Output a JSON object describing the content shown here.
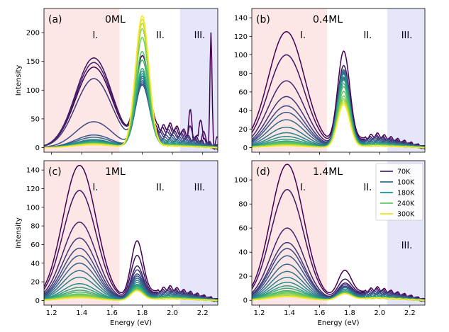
{
  "chart_data": [
    {
      "type": "line",
      "panel_label": "(a)",
      "title": "0ML",
      "region_labels": [
        "I.",
        "II.",
        "III."
      ],
      "ylabel": "Intensity",
      "xlabel": "",
      "xlim": [
        1.15,
        2.3
      ],
      "ylim": [
        -8,
        242
      ],
      "yticks": [
        0,
        50,
        100,
        150,
        200
      ],
      "xticks": [
        1.2,
        1.4,
        1.6,
        1.8,
        2.0,
        2.2
      ],
      "regions": [
        {
          "label": "I.",
          "from": 1.15,
          "to": 1.65,
          "color": "#fde6e6"
        },
        {
          "label": "III.",
          "from": 2.05,
          "to": 2.3,
          "color": "#e6e6fb"
        }
      ],
      "model": {
        "p1": {
          "center": 1.48,
          "width": 0.12,
          "amps": [
            140,
            156,
            148,
            120,
            45,
            22,
            18,
            14,
            13,
            12,
            10,
            9,
            8,
            8,
            7,
            7,
            6,
            6,
            5
          ]
        },
        "p2": {
          "center": 1.8,
          "width": 0.045,
          "amps": [
            140,
            105,
            100,
            95,
            100,
            105,
            110,
            115,
            120,
            125,
            130,
            135,
            150,
            165,
            190,
            205,
            215,
            222,
            228
          ]
        },
        "tail": {
          "amps": [
            38,
            34,
            28,
            25,
            20,
            17,
            14,
            12,
            10,
            8,
            7,
            6,
            5,
            5,
            4,
            4,
            3,
            3,
            3
          ]
        },
        "spikes": true
      }
    },
    {
      "type": "line",
      "panel_label": "(b)",
      "title": "0.4ML",
      "region_labels": [
        "I.",
        "II.",
        "III."
      ],
      "ylabel": "",
      "xlabel": "",
      "xlim": [
        1.15,
        2.3
      ],
      "ylim": [
        -5,
        150
      ],
      "yticks": [
        0,
        20,
        40,
        60,
        80,
        100,
        120,
        140
      ],
      "xticks": [
        1.2,
        1.4,
        1.6,
        1.8,
        2.0,
        2.2
      ],
      "regions": [
        {
          "label": "I.",
          "from": 1.15,
          "to": 1.65,
          "color": "#fde6e6"
        },
        {
          "label": "III.",
          "from": 2.05,
          "to": 2.3,
          "color": "#e6e6fb"
        }
      ],
      "model": {
        "p1": {
          "center": 1.38,
          "width": 0.12,
          "amps": [
            125,
            100,
            72,
            55,
            45,
            38,
            30,
            22,
            16,
            12,
            9,
            7,
            6,
            5,
            4,
            3,
            3,
            2,
            2
          ]
        },
        "p2": {
          "center": 1.76,
          "width": 0.04,
          "amps": [
            100,
            85,
            70,
            72,
            78,
            80,
            82,
            80,
            78,
            75,
            72,
            68,
            65,
            60,
            55,
            52,
            50,
            48,
            46
          ]
        },
        "tail": {
          "amps": [
            14,
            12,
            11,
            10,
            9,
            8,
            7,
            6,
            5,
            5,
            4,
            4,
            3,
            3,
            3,
            2,
            2,
            2,
            2
          ]
        },
        "spikes": false
      }
    },
    {
      "type": "line",
      "panel_label": "(c)",
      "title": "1ML",
      "region_labels": [
        "I.",
        "II.",
        "III."
      ],
      "ylabel": "Intensity",
      "xlabel": "Energy (eV)",
      "xlim": [
        1.15,
        2.3
      ],
      "ylim": [
        -5,
        150
      ],
      "yticks": [
        0,
        20,
        40,
        60,
        80,
        100,
        120,
        140
      ],
      "xticks": [
        1.2,
        1.4,
        1.6,
        1.8,
        2.0,
        2.2
      ],
      "regions": [
        {
          "label": "I.",
          "from": 1.15,
          "to": 1.65,
          "color": "#fde6e6"
        },
        {
          "label": "III.",
          "from": 2.05,
          "to": 2.3,
          "color": "#e6e6fb"
        }
      ],
      "model": {
        "p1": {
          "center": 1.385,
          "width": 0.11,
          "amps": [
            145,
            118,
            84,
            67,
            56,
            48,
            40,
            32,
            25,
            18,
            14,
            11,
            9,
            7,
            6,
            5,
            4,
            3,
            3
          ]
        },
        "p2": {
          "center": 1.765,
          "width": 0.04,
          "amps": [
            60,
            45,
            34,
            30,
            26,
            24,
            22,
            20,
            18,
            16,
            15,
            14,
            13,
            12,
            11,
            11,
            10,
            10,
            10
          ]
        },
        "tail": {
          "amps": [
            14,
            12,
            11,
            10,
            9,
            8,
            7,
            6,
            5,
            5,
            4,
            4,
            3,
            3,
            3,
            2,
            2,
            2,
            2
          ]
        },
        "spikes": false
      }
    },
    {
      "type": "line",
      "panel_label": "(d)",
      "title": "1.4ML",
      "region_labels": [
        "I.",
        "II.",
        "III."
      ],
      "ylabel": "",
      "xlabel": "Energy (eV)",
      "xlim": [
        1.15,
        2.3
      ],
      "ylim": [
        -4,
        116
      ],
      "yticks": [
        0,
        20,
        40,
        60,
        80,
        100
      ],
      "xticks": [
        1.2,
        1.4,
        1.6,
        1.8,
        2.0,
        2.2
      ],
      "regions": [
        {
          "label": "I.",
          "from": 1.15,
          "to": 1.65,
          "color": "#fde6e6"
        },
        {
          "label": "III.",
          "from": 2.05,
          "to": 2.3,
          "color": "#e6e6fb"
        }
      ],
      "legend": {
        "placement": "top-right",
        "entries": [
          {
            "label": "70K",
            "color": "#46296e"
          },
          {
            "label": "100K",
            "color": "#2e6f8e"
          },
          {
            "label": "180K",
            "color": "#21918c"
          },
          {
            "label": "240K",
            "color": "#5ec962"
          },
          {
            "label": "300K",
            "color": "#e6e41a"
          }
        ]
      },
      "model": {
        "p1": {
          "center": 1.385,
          "width": 0.11,
          "amps": [
            113,
            92,
            60,
            48,
            43,
            37,
            30,
            24,
            19,
            15,
            12,
            10,
            8,
            7,
            6,
            5,
            4,
            3,
            3
          ]
        },
        "p2": {
          "center": 1.765,
          "width": 0.045,
          "amps": [
            22,
            15,
            12,
            11,
            10,
            9,
            9,
            8,
            8,
            7,
            7,
            6,
            6,
            6,
            6,
            5,
            5,
            5,
            5
          ]
        },
        "tail": {
          "amps": [
            10,
            9,
            8,
            7,
            6,
            6,
            5,
            4,
            4,
            3,
            3,
            3,
            2,
            2,
            2,
            2,
            2,
            2,
            2
          ]
        },
        "spikes": false
      }
    }
  ]
}
